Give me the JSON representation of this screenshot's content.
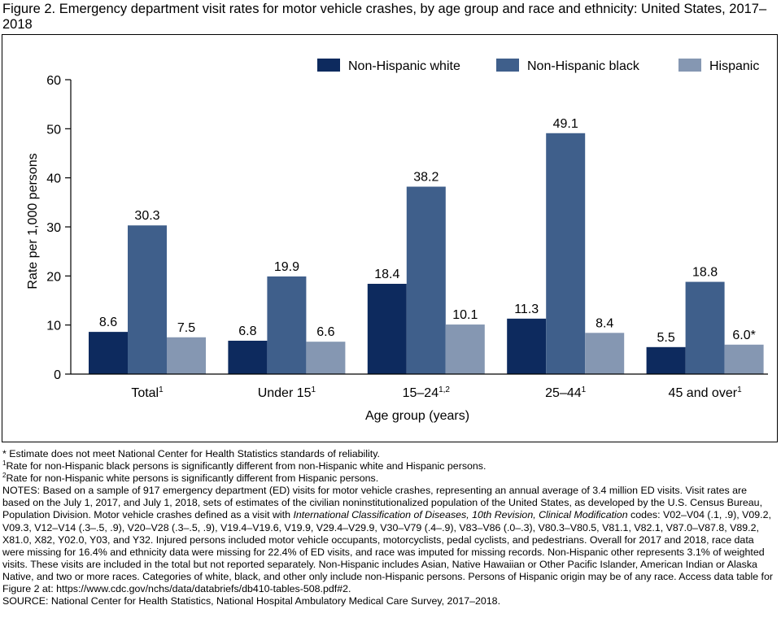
{
  "figure": {
    "title": "Figure 2. Emergency department visit rates for motor vehicle crashes, by age group and race and ethnicity: United States, 2017–2018"
  },
  "colors": {
    "non_hispanic_white": "#0d2a5e",
    "non_hispanic_black": "#3f5f8b",
    "hispanic": "#8597b2"
  },
  "chart_data": {
    "type": "bar",
    "xlabel": "Age group (years)",
    "ylabel": "Rate per 1,000 persons",
    "ylim": [
      0,
      60
    ],
    "yticks": [
      0,
      10,
      20,
      30,
      40,
      50,
      60
    ],
    "grid": false,
    "legend_position": "top-right",
    "categories": [
      {
        "label": "Total",
        "sup": "1"
      },
      {
        "label": "Under 15",
        "sup": "1"
      },
      {
        "label": "15–24",
        "sup": "1,2"
      },
      {
        "label": "25–44",
        "sup": "1"
      },
      {
        "label": "45 and over",
        "sup": "1"
      }
    ],
    "series": [
      {
        "name": "Non-Hispanic white",
        "values": [
          8.6,
          6.8,
          18.4,
          11.3,
          5.5
        ],
        "labels": [
          "8.6",
          "6.8",
          "18.4",
          "11.3",
          "5.5"
        ]
      },
      {
        "name": "Non-Hispanic black",
        "values": [
          30.3,
          19.9,
          38.2,
          49.1,
          18.8
        ],
        "labels": [
          "30.3",
          "19.9",
          "38.2",
          "49.1",
          "18.8"
        ]
      },
      {
        "name": "Hispanic",
        "values": [
          7.5,
          6.6,
          10.1,
          8.4,
          6.0
        ],
        "labels": [
          "7.5",
          "6.6",
          "10.1",
          "8.4",
          "6.0*"
        ]
      }
    ]
  },
  "footnotes": {
    "asterisk": "* Estimate does not meet National Center for Health Statistics standards of reliability.",
    "note1_mark": "1",
    "note1": "Rate for non-Hispanic black persons is significantly different from non-Hispanic white and Hispanic persons.",
    "note2_mark": "2",
    "note2": "Rate for non-Hispanic white persons is significantly different from Hispanic persons.",
    "notes_part1": "NOTES: Based on a sample of 917 emergency department (ED) visits for motor vehicle crashes, representing an annual average of 3.4 million ED visits. Visit rates are based on the July 1, 2017, and July 1, 2018, sets of estimates of the civilian noninstitutionalized population of the United States, as developed by the U.S. Census Bureau, Population Division. Motor vehicle crashes defined as a visit with ",
    "notes_italic": "International Classification of Diseases, 10th Revision, Clinical Modification",
    "notes_part2": " codes: V02–V04 (.1, .9), V09.2, V09.3, V12–V14 (.3–.5, .9), V20–V28 (.3–.5, .9), V19.4–V19.6, V19.9, V29.4–V29.9, V30–V79 (.4–.9), V83–V86 (.0–.3), V80.3–V80.5, V81.1, V82.1, V87.0–V87.8, V89.2, X81.0, X82, Y02.0, Y03, and Y32. Injured persons included motor vehicle occupants, motorcyclists, pedal cyclists, and pedestrians. Overall for 2017 and 2018, race data were missing for 16.4% and ethnicity data were missing for 22.4% of ED visits, and race was imputed for missing records. Non-Hispanic other represents 3.1% of weighted visits. These visits are included in the total but not reported separately. Non-Hispanic includes Asian, Native Hawaiian or Other Pacific Islander, American Indian or Alaska Native, and two or more races. Categories of white, black, and other only include non-Hispanic persons. Persons of Hispanic origin may be of any race. Access data table for Figure 2 at: https://www.cdc.gov/nchs/data/databriefs/db410-tables-508.pdf#2.",
    "source": "SOURCE: National Center for Health Statistics, National Hospital Ambulatory Medical Care Survey, 2017–2018."
  }
}
